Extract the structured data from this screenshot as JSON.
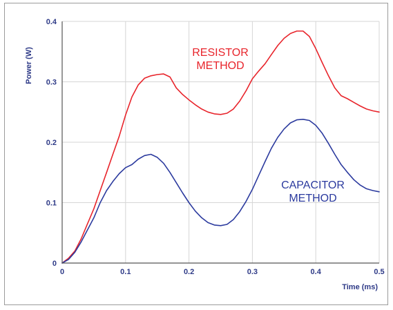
{
  "chart_data": {
    "type": "line",
    "title": "",
    "xlabel": "Time (ms)",
    "ylabel": "Power (W)",
    "xlim": [
      0,
      0.5
    ],
    "ylim": [
      0,
      0.4
    ],
    "grid": true,
    "x_ticks": [
      "0",
      "0.1",
      "0.2",
      "0.3",
      "0.4",
      "0.5"
    ],
    "y_ticks": [
      "0",
      "0.1",
      "0.2",
      "0.3",
      "0.4"
    ],
    "annotations": [
      {
        "lines": [
          "RESISTOR",
          "METHOD"
        ],
        "color": "#e8242b",
        "series": "RESISTOR METHOD"
      },
      {
        "lines": [
          "CAPACITOR",
          "METHOD"
        ],
        "color": "#2b3a9e",
        "series": "CAPACITOR METHOD"
      }
    ],
    "series": [
      {
        "name": "RESISTOR METHOD",
        "color": "#e8242b",
        "x": [
          0,
          0.01,
          0.02,
          0.03,
          0.04,
          0.05,
          0.06,
          0.07,
          0.08,
          0.09,
          0.1,
          0.11,
          0.12,
          0.13,
          0.14,
          0.15,
          0.16,
          0.17,
          0.18,
          0.19,
          0.2,
          0.21,
          0.22,
          0.23,
          0.24,
          0.25,
          0.26,
          0.27,
          0.28,
          0.29,
          0.3,
          0.31,
          0.32,
          0.33,
          0.34,
          0.35,
          0.36,
          0.37,
          0.38,
          0.39,
          0.4,
          0.41,
          0.42,
          0.43,
          0.44,
          0.45,
          0.46,
          0.47,
          0.48,
          0.49,
          0.5
        ],
        "values": [
          0,
          0.008,
          0.02,
          0.04,
          0.065,
          0.09,
          0.12,
          0.15,
          0.18,
          0.21,
          0.245,
          0.275,
          0.295,
          0.306,
          0.31,
          0.312,
          0.313,
          0.308,
          0.29,
          0.279,
          0.27,
          0.262,
          0.255,
          0.25,
          0.247,
          0.246,
          0.248,
          0.255,
          0.268,
          0.285,
          0.305,
          0.318,
          0.33,
          0.345,
          0.36,
          0.372,
          0.38,
          0.384,
          0.384,
          0.375,
          0.355,
          0.332,
          0.31,
          0.29,
          0.277,
          0.272,
          0.266,
          0.26,
          0.255,
          0.252,
          0.25
        ]
      },
      {
        "name": "CAPACITOR METHOD",
        "color": "#2b3a9e",
        "x": [
          0,
          0.01,
          0.02,
          0.03,
          0.04,
          0.05,
          0.06,
          0.07,
          0.08,
          0.09,
          0.1,
          0.11,
          0.12,
          0.13,
          0.14,
          0.15,
          0.16,
          0.17,
          0.18,
          0.19,
          0.2,
          0.21,
          0.22,
          0.23,
          0.24,
          0.25,
          0.26,
          0.27,
          0.28,
          0.29,
          0.3,
          0.31,
          0.32,
          0.33,
          0.34,
          0.35,
          0.36,
          0.37,
          0.38,
          0.39,
          0.4,
          0.41,
          0.42,
          0.43,
          0.44,
          0.45,
          0.46,
          0.47,
          0.48,
          0.49,
          0.5
        ],
        "values": [
          0,
          0.006,
          0.018,
          0.035,
          0.055,
          0.075,
          0.1,
          0.12,
          0.135,
          0.148,
          0.158,
          0.163,
          0.172,
          0.178,
          0.18,
          0.175,
          0.165,
          0.15,
          0.133,
          0.116,
          0.1,
          0.086,
          0.075,
          0.067,
          0.063,
          0.062,
          0.064,
          0.072,
          0.085,
          0.102,
          0.122,
          0.145,
          0.168,
          0.19,
          0.208,
          0.222,
          0.232,
          0.237,
          0.238,
          0.236,
          0.228,
          0.215,
          0.198,
          0.18,
          0.163,
          0.15,
          0.138,
          0.129,
          0.123,
          0.12,
          0.118
        ]
      }
    ]
  }
}
